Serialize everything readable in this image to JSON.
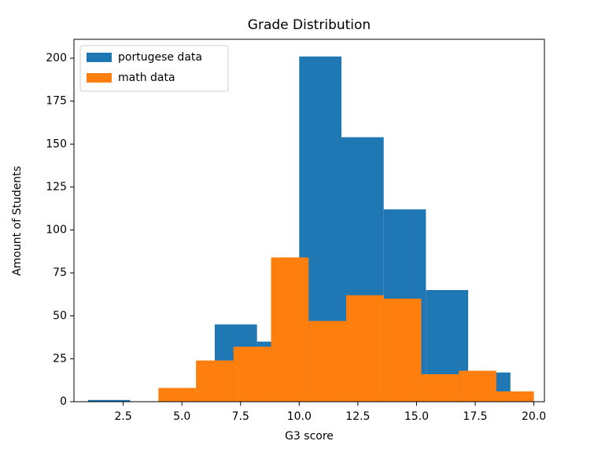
{
  "chart_data": {
    "type": "histogram",
    "title": "Grade Distribution",
    "x_label": "G3 score",
    "y_label": "Amount of Students",
    "series": [
      {
        "name": "portugese data",
        "color": "#1f77b4",
        "bins": [
          1,
          2.8,
          4.6,
          6.4,
          8.2,
          10,
          11.8,
          13.6,
          15.4,
          17.2,
          19
        ],
        "values": [
          1,
          0,
          4,
          45,
          35,
          201,
          154,
          112,
          65,
          17
        ]
      },
      {
        "name": "math data",
        "color": "#ff7f0e",
        "bins": [
          4,
          5.6,
          7.2,
          8.8,
          10.4,
          12,
          13.6,
          15.2,
          16.8,
          18.4,
          20
        ],
        "values": [
          8,
          24,
          32,
          84,
          47,
          62,
          60,
          16,
          18,
          6
        ]
      }
    ],
    "xlim": [
      0.4,
      20.45
    ],
    "ylim": [
      0,
      211
    ],
    "xticks": [
      2.5,
      {
        "value": 5,
        "label": "5.0"
      },
      7.5,
      {
        "value": 10,
        "label": "10.0"
      },
      12.5,
      {
        "value": 15,
        "label": "15.0"
      },
      17.5,
      {
        "value": 20,
        "label": "20.0"
      }
    ],
    "yticks": [
      0,
      25,
      50,
      75,
      100,
      125,
      150,
      175,
      200
    ],
    "legend": "upper left"
  }
}
